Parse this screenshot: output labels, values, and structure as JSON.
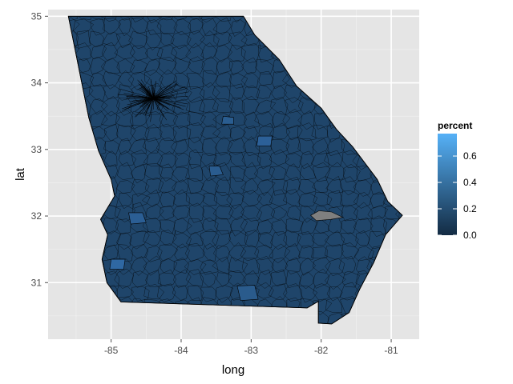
{
  "chart_data": {
    "type": "heatmap",
    "subtype": "choropleth map",
    "title": "",
    "xlabel": "long",
    "ylabel": "lat",
    "xlim": [
      -85.9,
      -80.6
    ],
    "ylim": [
      30.15,
      35.1
    ],
    "x_ticks": [
      -85,
      -84,
      -83,
      -82,
      -81
    ],
    "y_ticks": [
      31,
      32,
      33,
      34,
      35
    ],
    "x_tick_labels": [
      "-85",
      "-84",
      "-83",
      "-82",
      "-81"
    ],
    "y_tick_labels": [
      "31",
      "32",
      "33",
      "34",
      "35"
    ],
    "grid": true,
    "legend": {
      "title": "percent",
      "placement": "right",
      "scale_min": 0.0,
      "scale_max": 0.77,
      "breaks": [
        0.0,
        0.2,
        0.4,
        0.6
      ],
      "break_labels": [
        "0.0",
        "0.2",
        "0.4",
        "0.6"
      ],
      "low_color": "#132B43",
      "high_color": "#56B1F7"
    },
    "regions": {
      "outline": [
        [
          -85.61,
          35.0
        ],
        [
          -83.11,
          35.0
        ],
        [
          -82.95,
          34.72
        ],
        [
          -82.6,
          34.35
        ],
        [
          -82.35,
          33.95
        ],
        [
          -82.0,
          33.62
        ],
        [
          -81.78,
          33.3
        ],
        [
          -81.55,
          33.04
        ],
        [
          -81.2,
          32.55
        ],
        [
          -81.05,
          32.22
        ],
        [
          -80.84,
          32.01
        ],
        [
          -81.08,
          31.72
        ],
        [
          -81.25,
          31.3
        ],
        [
          -81.45,
          30.9
        ],
        [
          -81.6,
          30.55
        ],
        [
          -81.85,
          30.38
        ],
        [
          -82.04,
          30.39
        ],
        [
          -82.04,
          30.72
        ],
        [
          -82.2,
          30.62
        ],
        [
          -84.86,
          30.71
        ],
        [
          -85.06,
          31.0
        ],
        [
          -85.13,
          31.35
        ],
        [
          -85.05,
          31.72
        ],
        [
          -85.15,
          31.95
        ],
        [
          -84.95,
          32.3
        ],
        [
          -85.0,
          32.55
        ],
        [
          -85.18,
          32.98
        ],
        [
          -85.32,
          33.48
        ],
        [
          -85.61,
          35.0
        ]
      ],
      "fill_color": "#1f456a",
      "missing_value_color": "#7f7f7f",
      "missing_region": [
        [
          -82.15,
          32.01
        ],
        [
          -82.03,
          32.08
        ],
        [
          -81.85,
          32.06
        ],
        [
          -81.69,
          31.98
        ],
        [
          -81.86,
          31.95
        ],
        [
          -82.07,
          31.93
        ]
      ],
      "highlights": [
        {
          "color": "#2a5c8f",
          "polygon": [
            [
              -83.6,
              32.75
            ],
            [
              -83.45,
              32.75
            ],
            [
              -83.4,
              32.62
            ],
            [
              -83.58,
              32.6
            ]
          ]
        },
        {
          "color": "#2b5e94",
          "polygon": [
            [
              -84.75,
              32.05
            ],
            [
              -84.55,
              32.05
            ],
            [
              -84.5,
              31.9
            ],
            [
              -84.72,
              31.88
            ]
          ]
        },
        {
          "color": "#2f68a3",
          "polygon": [
            [
              -85.0,
              31.35
            ],
            [
              -84.8,
              31.35
            ],
            [
              -84.82,
              31.2
            ],
            [
              -85.02,
              31.2
            ]
          ]
        },
        {
          "color": "#2a5b8c",
          "polygon": [
            [
              -83.2,
              30.95
            ],
            [
              -82.95,
              30.96
            ],
            [
              -82.9,
              30.75
            ],
            [
              -83.15,
              30.73
            ]
          ]
        },
        {
          "color": "#2c6098",
          "polygon": [
            [
              -82.9,
              33.2
            ],
            [
              -82.7,
              33.2
            ],
            [
              -82.72,
              33.05
            ],
            [
              -82.92,
              33.05
            ]
          ]
        },
        {
          "color": "#2a5d90",
          "polygon": [
            [
              -83.4,
              33.5
            ],
            [
              -83.25,
              33.48
            ],
            [
              -83.25,
              33.38
            ],
            [
              -83.42,
              33.38
            ]
          ]
        }
      ]
    }
  }
}
